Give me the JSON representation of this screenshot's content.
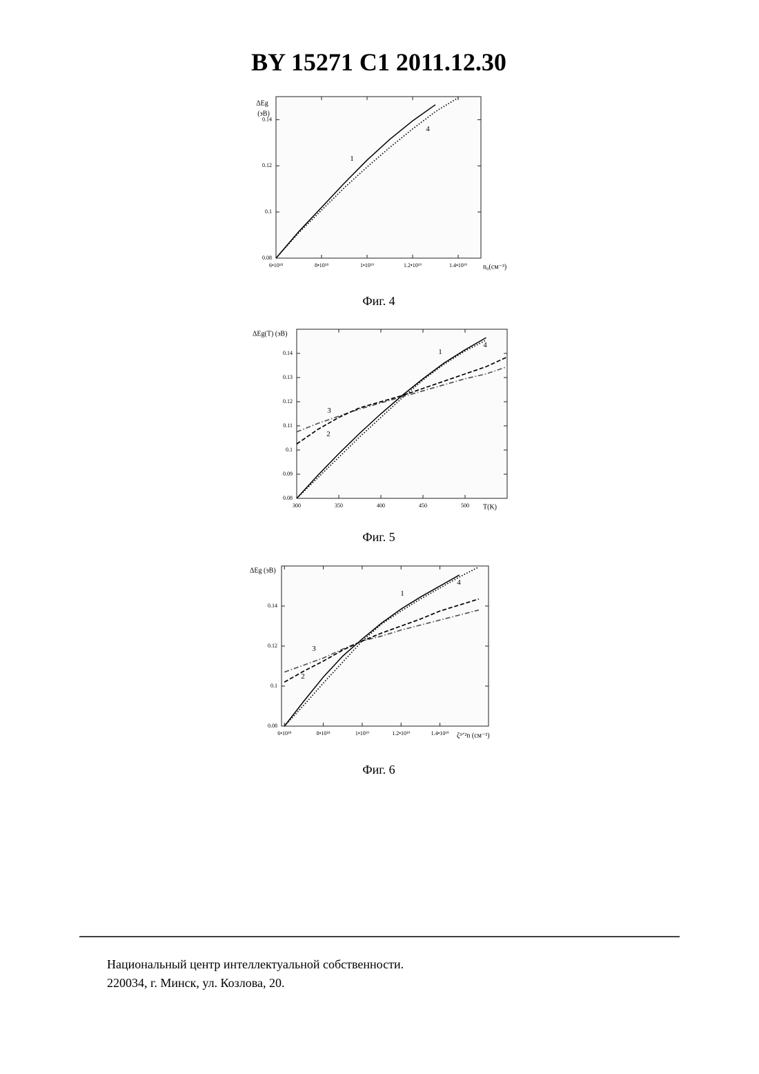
{
  "header": {
    "title": "BY  15271  C1  2011.12.30"
  },
  "chart_data": [
    {
      "type": "line",
      "caption": "Фиг. 4",
      "ylabel": [
        "ΔEg",
        "(эВ)"
      ],
      "xlabel": "n₀(см⁻³)",
      "x": [
        6e+18,
        7e+18,
        8e+18,
        9e+18,
        1e+19,
        1.1e+19,
        1.2e+19,
        1.3e+19,
        1.4e+19
      ],
      "series": [
        {
          "name": "1",
          "color": "#000000",
          "style": "solid",
          "values": [
            0.08,
            0.0915,
            0.102,
            0.1125,
            0.1225,
            0.1315,
            0.1395,
            0.1465,
            null
          ]
        },
        {
          "name": "4",
          "color": "#000000",
          "style": "dotted",
          "values": [
            0.08,
            0.091,
            0.1008,
            0.1105,
            0.1195,
            0.128,
            0.136,
            0.1435,
            0.1495
          ]
        }
      ],
      "xlim": [
        6e+18,
        1.5e+19
      ],
      "xticks": [
        {
          "value": 6e+18,
          "label": "6•10¹⁸"
        },
        {
          "value": 8e+18,
          "label": "8•10¹⁸"
        },
        {
          "value": 1e+19,
          "label": "1•10¹⁹"
        },
        {
          "value": 1.2e+19,
          "label": "1.2•10¹⁹"
        },
        {
          "value": 1.4e+19,
          "label": "1.4•10¹⁹"
        }
      ],
      "ylim": [
        0.08,
        0.15
      ],
      "yticks": [
        0.08,
        0.1,
        0.12,
        0.14
      ]
    },
    {
      "type": "line",
      "caption": "Фиг. 5",
      "ylabel": [
        "ΔEg(T) (эВ)"
      ],
      "xlabel": "T(K)",
      "x": [
        300,
        325,
        350,
        375,
        400,
        425,
        450,
        475,
        500,
        525,
        550
      ],
      "series": [
        {
          "name": "1",
          "color": "#000000",
          "style": "solid",
          "values": [
            0.08,
            0.0895,
            0.0985,
            0.107,
            0.115,
            0.1225,
            0.1295,
            0.136,
            0.1415,
            0.1465,
            null
          ]
        },
        {
          "name": "4",
          "color": "#000000",
          "style": "dotted",
          "values": [
            0.08,
            0.0885,
            0.097,
            0.1055,
            0.1135,
            0.1215,
            0.129,
            0.1355,
            0.141,
            0.1455,
            null
          ]
        },
        {
          "name": "3",
          "color": "#555555",
          "style": "dashdot",
          "values": [
            0.1075,
            0.111,
            0.114,
            0.117,
            0.1195,
            0.122,
            0.1245,
            0.127,
            0.1295,
            0.1315,
            0.1345
          ]
        },
        {
          "name": "2",
          "color": "#000000",
          "style": "dashed",
          "values": [
            0.1025,
            0.1085,
            0.1135,
            0.1175,
            0.12,
            0.1225,
            0.1255,
            0.1285,
            0.1315,
            0.1345,
            0.1385
          ]
        }
      ],
      "xlim": [
        300,
        550
      ],
      "xticks": [
        300,
        350,
        400,
        450,
        500
      ],
      "ylim": [
        0.08,
        0.15
      ],
      "yticks": [
        0.08,
        0.09,
        0.1,
        0.11,
        0.12,
        0.13,
        0.14
      ]
    },
    {
      "type": "line",
      "caption": "Фиг. 6",
      "ylabel": [
        "ΔEg (эВ)"
      ],
      "xlabel": "ζ³ᐟ²n (см⁻³)",
      "x": [
        6e+18,
        7e+18,
        8e+18,
        9e+18,
        1e+19,
        1.1e+19,
        1.2e+19,
        1.3e+19,
        1.4e+19,
        1.5e+19,
        1.6e+19
      ],
      "series": [
        {
          "name": "1",
          "color": "#000000",
          "style": "solid",
          "values": [
            0.08,
            0.0925,
            0.1045,
            0.115,
            0.1235,
            0.1315,
            0.1385,
            0.1445,
            0.15,
            0.1555,
            null
          ]
        },
        {
          "name": "4",
          "color": "#000000",
          "style": "dotted",
          "values": [
            0.08,
            0.0905,
            0.1015,
            0.112,
            0.1225,
            0.131,
            0.1375,
            0.1435,
            0.149,
            0.1545,
            0.1595
          ]
        },
        {
          "name": "3",
          "color": "#555555",
          "style": "dashdot",
          "values": [
            0.107,
            0.1105,
            0.114,
            0.1185,
            0.1225,
            0.125,
            0.128,
            0.1305,
            0.133,
            0.1355,
            0.138
          ]
        },
        {
          "name": "2",
          "color": "#000000",
          "style": "dashed",
          "values": [
            0.102,
            0.1075,
            0.1125,
            0.118,
            0.1225,
            0.1265,
            0.13,
            0.1335,
            0.1375,
            0.1405,
            0.1435
          ]
        }
      ],
      "xlim": [
        5.85e+18,
        1.65e+19
      ],
      "xticks": [
        {
          "value": 6e+18,
          "label": "6•10¹⁸"
        },
        {
          "value": 8e+18,
          "label": "8•10¹⁸"
        },
        {
          "value": 1e+19,
          "label": "1•10¹⁹"
        },
        {
          "value": 1.2e+19,
          "label": "1.2•10¹⁹"
        },
        {
          "value": 1.4e+19,
          "label": "1.4•10¹⁹"
        }
      ],
      "ylim": [
        0.08,
        0.16
      ],
      "yticks": [
        0.08,
        0.1,
        0.12,
        0.14
      ]
    }
  ],
  "footer": {
    "lines": [
      "Национальный центр интеллектуальной собственности.",
      "220034, г. Минск, ул. Козлова, 20."
    ]
  }
}
